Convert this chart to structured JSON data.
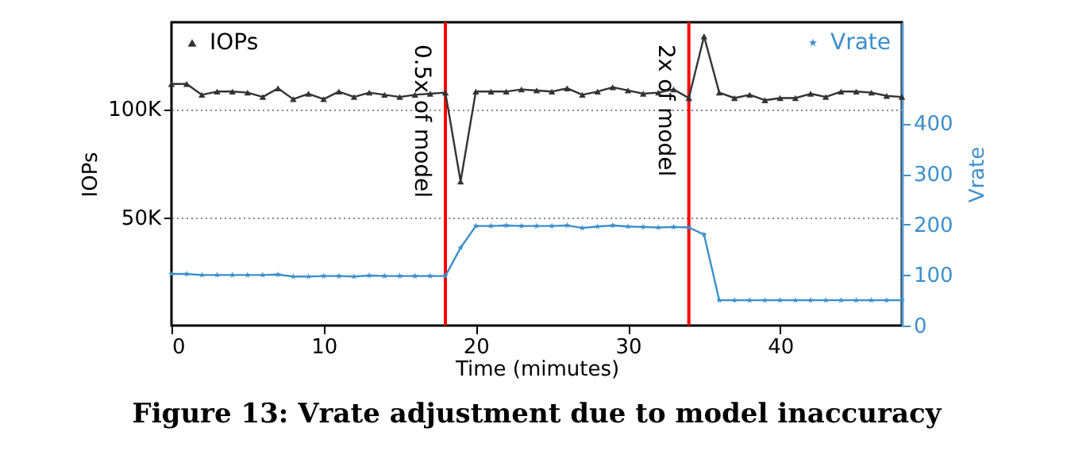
{
  "chart_data": {
    "type": "line",
    "title": "Figure 13: Vrate adjustment due to model inaccuracy",
    "xlabel": "Time (mimutes)",
    "ylabel": "IOPs",
    "y2label": "Vrate",
    "x": [
      0,
      1,
      2,
      3,
      4,
      5,
      6,
      7,
      8,
      9,
      10,
      11,
      12,
      13,
      14,
      15,
      16,
      17,
      18,
      19,
      20,
      21,
      22,
      23,
      24,
      25,
      26,
      27,
      28,
      29,
      30,
      31,
      32,
      33,
      34,
      35,
      36,
      37,
      38,
      39,
      40,
      41,
      42,
      43,
      44,
      45,
      46,
      47,
      48
    ],
    "series": [
      {
        "name": "IOPs",
        "color": "#333333",
        "marker": "triangle",
        "values": [
          111500,
          111500,
          106500,
          108000,
          108000,
          107500,
          105500,
          109500,
          104500,
          107000,
          104500,
          108000,
          105500,
          107500,
          106500,
          105500,
          106500,
          107000,
          107500,
          66500,
          108000,
          108000,
          108000,
          109000,
          108500,
          108000,
          109500,
          106500,
          108000,
          110000,
          108500,
          107000,
          107500,
          109000,
          105000,
          133500,
          107500,
          105000,
          106500,
          104000,
          105000,
          105000,
          107000,
          105500,
          108000,
          108000,
          107500,
          106000,
          105500
        ]
      },
      {
        "name": "Vrate",
        "color": "#3b8fcc",
        "marker": "star",
        "axis": "y2",
        "values": [
          102,
          102,
          100,
          100,
          100,
          100,
          100,
          101,
          97,
          97,
          98,
          98,
          97,
          99,
          98,
          98,
          98,
          98,
          98,
          154,
          197,
          197,
          198,
          197,
          197,
          197,
          198,
          193,
          196,
          198,
          196,
          195,
          194,
          195,
          194,
          180,
          50,
          50,
          50,
          50,
          50,
          50,
          50,
          50,
          50,
          50,
          50,
          50,
          50
        ]
      }
    ],
    "xlim": [
      0,
      48
    ],
    "xticks": [
      0,
      10,
      20,
      30,
      40
    ],
    "ylim": [
      0,
      140000
    ],
    "yticks": [
      {
        "value": 50000,
        "label": "50K"
      },
      {
        "value": 100000,
        "label": "100K"
      }
    ],
    "y2lim": [
      0,
      600
    ],
    "y2ticks": [
      0,
      100,
      200,
      300,
      400
    ],
    "ref_lines": [
      {
        "axis": "x",
        "value": 18,
        "label": "0.5x of model",
        "color": "#ff0000"
      },
      {
        "axis": "x",
        "value": 34,
        "label": "2x of model",
        "color": "#ff0000"
      }
    ],
    "grid": "y",
    "legend": "top",
    "line_style": "solid"
  }
}
